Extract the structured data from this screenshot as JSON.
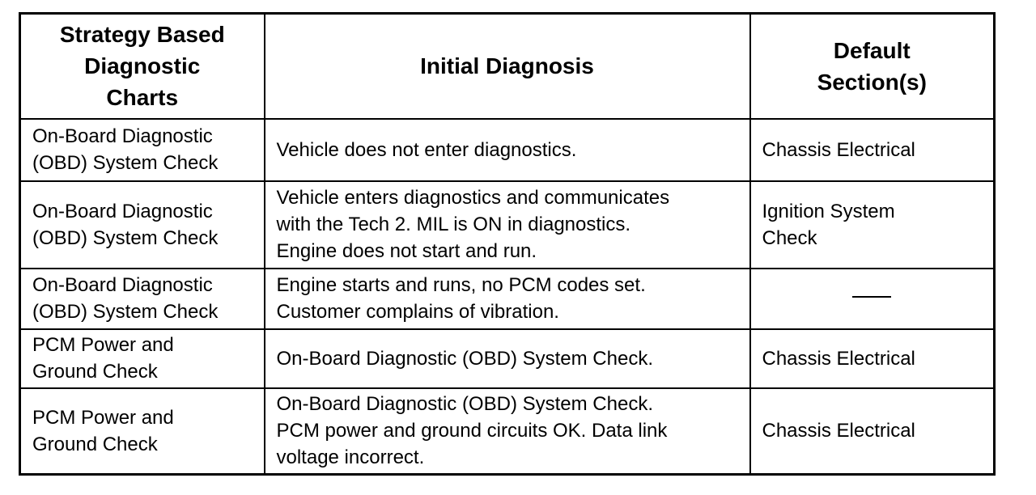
{
  "headers": [
    "Strategy Based Diagnostic Charts",
    "Initial Diagnosis",
    "Default Section(s)"
  ],
  "header_lines": [
    [
      "Strategy Based",
      "Diagnostic",
      "Charts"
    ],
    [
      "Initial Diagnosis"
    ],
    [
      "Default",
      "Section(s)"
    ]
  ],
  "rows": [
    {
      "chart": [
        "On-Board Diagnostic",
        "(OBD) System Check"
      ],
      "diagnosis": [
        "Vehicle does not enter diagnostics."
      ],
      "section": [
        "Chassis Electrical"
      ]
    },
    {
      "chart": [
        "On-Board Diagnostic",
        "(OBD) System Check"
      ],
      "diagnosis": [
        "Vehicle enters diagnostics and communicates",
        "with the Tech 2. MIL is ON in diagnostics.",
        "Engine does not start and run."
      ],
      "section": [
        "Ignition System",
        "Check"
      ]
    },
    {
      "chart": [
        "On-Board Diagnostic",
        "(OBD) System Check"
      ],
      "diagnosis": [
        "Engine starts and runs, no PCM codes set.",
        "Customer complains of vibration."
      ],
      "section": [],
      "section_is_dash": true
    },
    {
      "chart": [
        "PCM Power and",
        "Ground Check"
      ],
      "diagnosis": [
        "On-Board Diagnostic (OBD) System Check."
      ],
      "section": [
        "Chassis Electrical"
      ]
    },
    {
      "chart": [
        "PCM Power and",
        "Ground Check"
      ],
      "diagnosis": [
        "On-Board Diagnostic (OBD) System Check.",
        "PCM power and ground circuits OK. Data link",
        "voltage incorrect."
      ],
      "section": [
        "Chassis Electrical"
      ]
    }
  ]
}
